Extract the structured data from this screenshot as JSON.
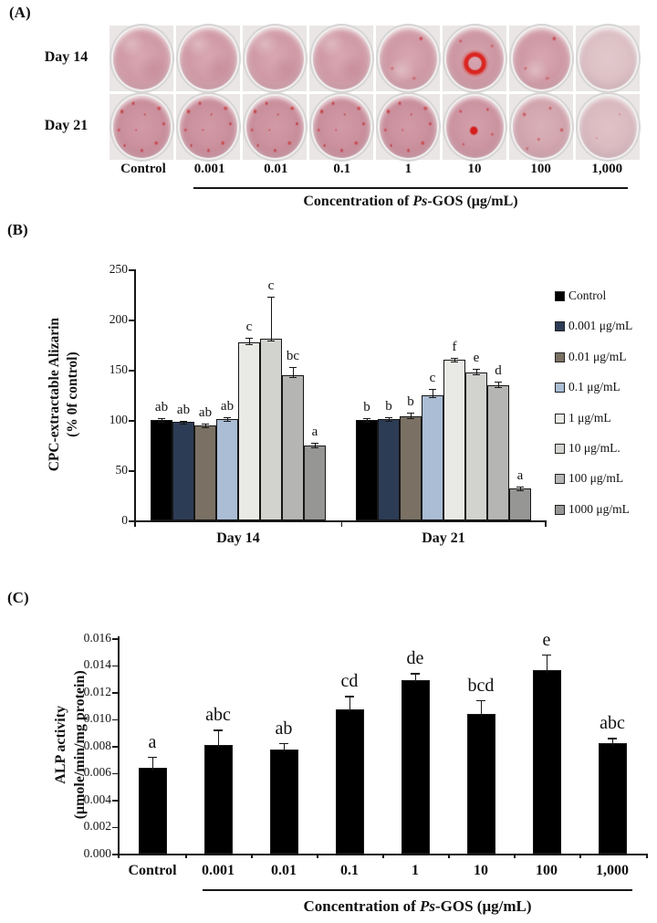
{
  "figure": {
    "panelA": {
      "label": "(A)",
      "row_labels": [
        "Day 14",
        "Day 21"
      ],
      "col_labels": [
        "Control",
        "0.001",
        "0.01",
        "0.1",
        "1",
        "10",
        "100",
        "1,000"
      ],
      "caption": {
        "prefix": "Concentration of ",
        "italic": "Ps",
        "suffix": "-GOS (μg/mL)"
      },
      "wells": [
        {
          "row": "Day 14",
          "col": "Control",
          "look": "plain"
        },
        {
          "row": "Day 14",
          "col": "0.001",
          "look": "plain"
        },
        {
          "row": "Day 14",
          "col": "0.01",
          "look": "plain"
        },
        {
          "row": "Day 14",
          "col": "0.1",
          "look": "plain"
        },
        {
          "row": "Day 14",
          "col": "1",
          "look": "light-speckle"
        },
        {
          "row": "Day 14",
          "col": "10",
          "look": "ring"
        },
        {
          "row": "Day 14",
          "col": "100",
          "look": "light-speckle"
        },
        {
          "row": "Day 14",
          "col": "1,000",
          "look": "pale"
        },
        {
          "row": "Day 21",
          "col": "Control",
          "look": "heavy"
        },
        {
          "row": "Day 21",
          "col": "0.001",
          "look": "heavy"
        },
        {
          "row": "Day 21",
          "col": "0.01",
          "look": "heavy"
        },
        {
          "row": "Day 21",
          "col": "0.1",
          "look": "heavy"
        },
        {
          "row": "Day 21",
          "col": "1",
          "look": "heavy"
        },
        {
          "row": "Day 21",
          "col": "10",
          "look": "blob"
        },
        {
          "row": "Day 21",
          "col": "100",
          "look": "medium"
        },
        {
          "row": "Day 21",
          "col": "1,000",
          "look": "pale2"
        }
      ]
    },
    "panelB": {
      "label": "(B)"
    },
    "panelC": {
      "label": "(C)"
    }
  },
  "chart_data": [
    {
      "panel": "B",
      "type": "bar",
      "ylabel_lines": [
        "CPC-extractable Alizarin",
        "(% 0f control)"
      ],
      "ylim": [
        0,
        250
      ],
      "yticks": [
        0,
        50,
        100,
        150,
        200,
        250
      ],
      "groups": [
        "Day 14",
        "Day 21"
      ],
      "legend_position": "right",
      "grid": "off",
      "series": [
        {
          "name": "Control",
          "color": "#000000",
          "values": [
            100,
            100
          ],
          "errors": [
            2,
            2
          ],
          "letters": [
            "ab",
            "b"
          ]
        },
        {
          "name": "0.001 μg/mL",
          "color": "#2d3c55",
          "values": [
            98,
            101
          ],
          "errors": [
            1.5,
            1.5
          ],
          "letters": [
            "ab",
            "b"
          ]
        },
        {
          "name": "0.01 μg/mL",
          "color": "#7a7164",
          "values": [
            95,
            104
          ],
          "errors": [
            1.5,
            3
          ],
          "letters": [
            "ab",
            "b"
          ]
        },
        {
          "name": "0.1 μg/mL",
          "color": "#aabdd4",
          "values": [
            101,
            125
          ],
          "errors": [
            2,
            6
          ],
          "letters": [
            "ab",
            "c"
          ]
        },
        {
          "name": "1 μg/mL",
          "color": "#e9e9e6",
          "values": [
            177,
            160
          ],
          "errors": [
            5,
            2
          ],
          "letters": [
            "c",
            "f"
          ]
        },
        {
          "name": "10 μg/mL.",
          "color": "#d2d2cf",
          "values": [
            181,
            147
          ],
          "errors": [
            42,
            4
          ],
          "letters": [
            "c",
            "e"
          ]
        },
        {
          "name": "100 μg/mL",
          "color": "#b5b5b3",
          "values": [
            145,
            135
          ],
          "errors": [
            8,
            3
          ],
          "letters": [
            "bc",
            "d"
          ]
        },
        {
          "name": "1000 μg/mL",
          "color": "#969694",
          "values": [
            75,
            32
          ],
          "errors": [
            2,
            2
          ],
          "letters": [
            "a",
            "a"
          ]
        }
      ]
    },
    {
      "panel": "C",
      "type": "bar",
      "ylabel_lines": [
        "ALP activity",
        "(μmole/min/mg protein)"
      ],
      "ylim": [
        0,
        0.016
      ],
      "ytick_step": 0.002,
      "ytick_decimals": 3,
      "categories": [
        "Control",
        "0.001",
        "0.01",
        "0.1",
        "1",
        "10",
        "100",
        "1,000"
      ],
      "bar_color": "#000000",
      "grid": "off",
      "values": [
        0.0064,
        0.0081,
        0.0077,
        0.0107,
        0.0129,
        0.0104,
        0.0136,
        0.0082
      ],
      "errors": [
        0.0008,
        0.0011,
        0.0005,
        0.001,
        0.0005,
        0.001,
        0.0012,
        0.0004
      ],
      "letters": [
        "a",
        "abc",
        "ab",
        "cd",
        "de",
        "bcd",
        "e",
        "abc"
      ],
      "caption": {
        "prefix": "Concentration of ",
        "italic": "Ps",
        "suffix": "-GOS (μg/mL)"
      }
    }
  ]
}
